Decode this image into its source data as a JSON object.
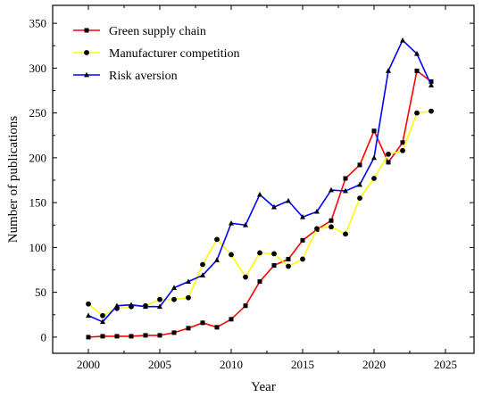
{
  "chart_data": {
    "type": "line",
    "title": "",
    "xlabel": "Year",
    "ylabel": "Number of publications",
    "xlim": [
      1997.5,
      2027
    ],
    "ylim": [
      -18,
      370
    ],
    "xticks": [
      2000,
      2005,
      2010,
      2015,
      2020,
      2025
    ],
    "yticks": [
      0,
      50,
      100,
      150,
      200,
      250,
      300,
      350
    ],
    "grid": false,
    "legend_position": "top-left",
    "x": [
      2000,
      2001,
      2002,
      2003,
      2004,
      2005,
      2006,
      2007,
      2008,
      2009,
      2010,
      2011,
      2012,
      2013,
      2014,
      2015,
      2016,
      2017,
      2018,
      2019,
      2020,
      2021,
      2022,
      2023,
      2024
    ],
    "series": [
      {
        "name": "Green supply chain",
        "color": "#ff0000",
        "marker": "square",
        "values": [
          0,
          1,
          1,
          1,
          2,
          2,
          5,
          10,
          16,
          11,
          20,
          35,
          62,
          80,
          87,
          108,
          120,
          130,
          177,
          192,
          230,
          195,
          217,
          297,
          285
        ]
      },
      {
        "name": "Manufacturer competition",
        "color": "#ffff00",
        "marker": "circle",
        "values": [
          37,
          24,
          32,
          34,
          35,
          42,
          42,
          44,
          81,
          109,
          92,
          67,
          94,
          93,
          79,
          87,
          121,
          123,
          115,
          155,
          177,
          204,
          208,
          250,
          252
        ]
      },
      {
        "name": "Risk aversion",
        "color": "#0000ff",
        "marker": "triangle",
        "values": [
          24,
          17,
          35,
          36,
          34,
          34,
          55,
          62,
          69,
          86,
          127,
          125,
          159,
          145,
          152,
          134,
          140,
          164,
          163,
          170,
          200,
          297,
          331,
          316,
          281
        ]
      }
    ]
  }
}
